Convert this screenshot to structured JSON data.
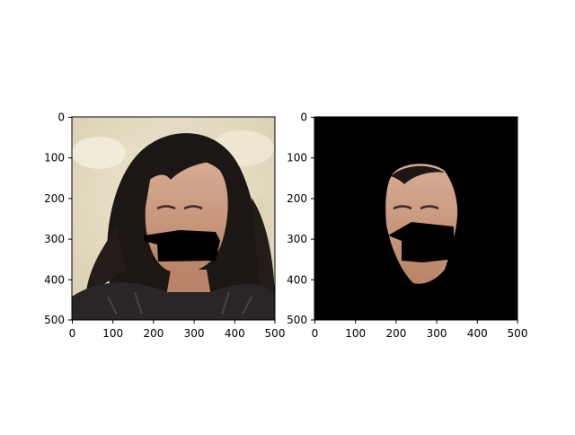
{
  "figure": {
    "panels": [
      {
        "name": "original-with-occlusion",
        "xticks": [
          "0",
          "100",
          "200",
          "300",
          "400",
          "500"
        ],
        "yticks": [
          "0",
          "100",
          "200",
          "300",
          "400",
          "500"
        ]
      },
      {
        "name": "segmented-face",
        "xticks": [
          "0",
          "100",
          "200",
          "300",
          "400",
          "500"
        ],
        "yticks": [
          "0",
          "100",
          "200",
          "300",
          "400",
          "500"
        ]
      }
    ]
  },
  "colors": {
    "background_sand": "#e9e1c8",
    "hair": "#1c1614",
    "skin": "#c89a7e",
    "occlusion": "#000000",
    "jacket": "#2a2628",
    "mask_bg": "#000000"
  }
}
